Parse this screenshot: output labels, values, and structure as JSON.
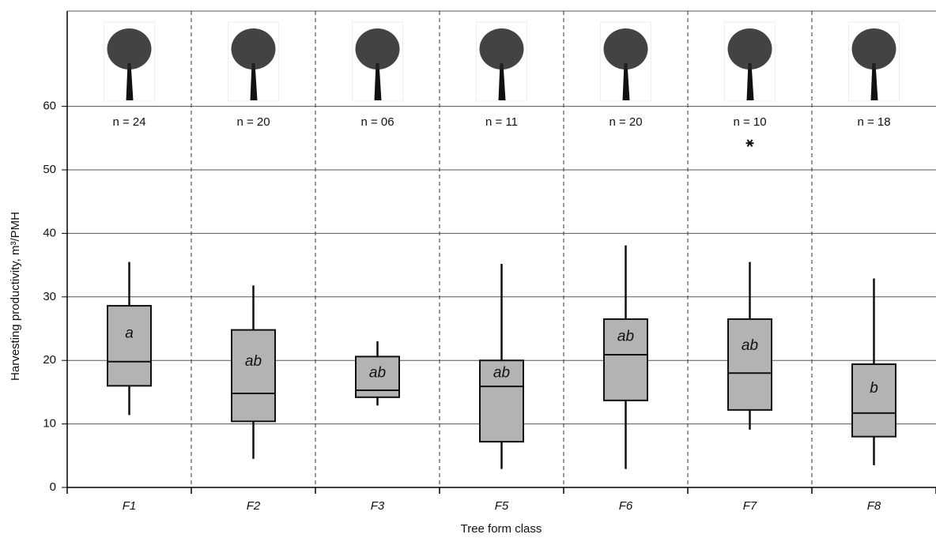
{
  "chart_data": {
    "type": "box",
    "x_label": "Tree form class",
    "y_label": "Harvesting productivity, m³/PMH",
    "categories": [
      "F1",
      "F2",
      "F3",
      "F5",
      "F6",
      "F7",
      "F8"
    ],
    "min": [
      11.4,
      4.5,
      12.9,
      2.9,
      2.9,
      9.1,
      3.5
    ],
    "q1": [
      16.0,
      10.4,
      14.2,
      7.2,
      13.7,
      12.2,
      8.0
    ],
    "median": [
      19.8,
      14.8,
      15.3,
      15.9,
      20.9,
      18.0,
      11.7
    ],
    "q3": [
      28.6,
      24.8,
      20.6,
      20.0,
      26.5,
      26.5,
      19.4
    ],
    "max": [
      35.5,
      31.8,
      23.0,
      35.2,
      38.1,
      35.5,
      32.9
    ],
    "outliers": [
      [],
      [],
      [],
      [],
      [],
      [
        54.2
      ],
      []
    ],
    "group_labels": [
      "a",
      "ab",
      "ab",
      "ab",
      "ab",
      "ab",
      "b"
    ],
    "n_labels": [
      "n = 24",
      "n = 20",
      "n = 06",
      "n = 11",
      "n = 20",
      "n = 10",
      "n = 18"
    ],
    "box_color": "#b3b3b3",
    "ylim": [
      0,
      75
    ],
    "yticks": [
      0,
      10,
      20,
      30,
      40,
      50,
      60
    ],
    "grid": true
  }
}
